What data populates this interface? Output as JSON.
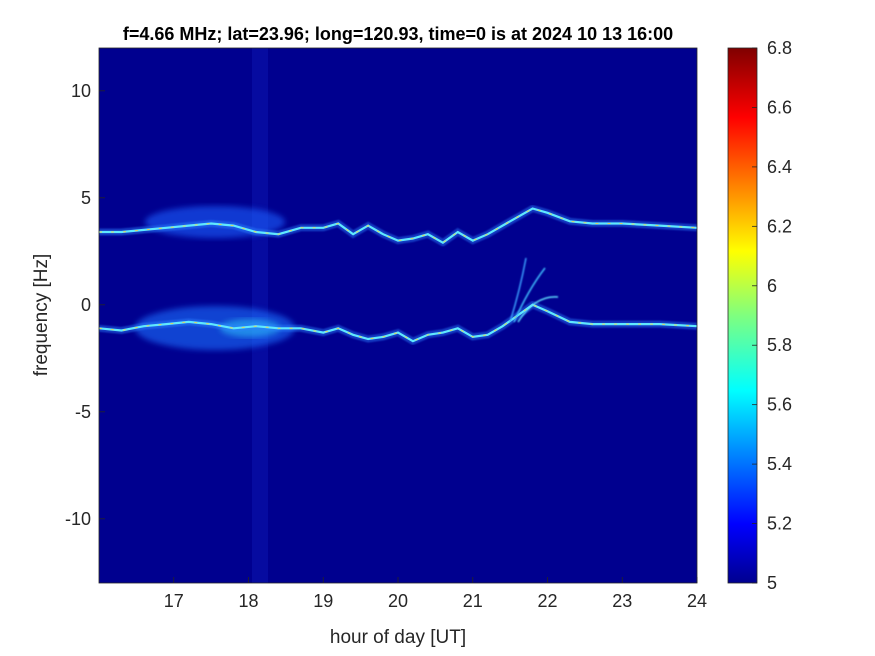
{
  "chart_data": {
    "type": "heatmap",
    "title": "f=4.66 MHz;  lat=23.96; long=120.93, time=0 is at 2024 10 13 16:00",
    "xlabel": "hour of day [UT]",
    "ylabel": "frequency [Hz]",
    "xlim": [
      16,
      24
    ],
    "ylim": [
      -13,
      12
    ],
    "xticks": [
      17,
      18,
      19,
      20,
      21,
      22,
      23,
      24
    ],
    "yticks": [
      -10,
      -5,
      0,
      5,
      10
    ],
    "colorbar": {
      "min": 5,
      "max": 6.8,
      "ticks": [
        5,
        5.2,
        5.4,
        5.6,
        5.8,
        6,
        6.2,
        6.4,
        6.6,
        6.8
      ],
      "colormap": "jet"
    },
    "background_color": "#00008f",
    "traces": [
      {
        "name": "",
        "points": [
          [
            16.0,
            3.4
          ],
          [
            16.3,
            3.4
          ],
          [
            16.6,
            3.5
          ],
          [
            16.9,
            3.6
          ],
          [
            17.2,
            3.7
          ],
          [
            17.5,
            3.8
          ],
          [
            17.8,
            3.7
          ],
          [
            18.1,
            3.4
          ],
          [
            18.4,
            3.3
          ],
          [
            18.7,
            3.6
          ],
          [
            19.0,
            3.6
          ],
          [
            19.2,
            3.8
          ],
          [
            19.4,
            3.3
          ],
          [
            19.6,
            3.7
          ],
          [
            19.8,
            3.3
          ],
          [
            20.0,
            3.0
          ],
          [
            20.2,
            3.1
          ],
          [
            20.4,
            3.3
          ],
          [
            20.6,
            2.9
          ],
          [
            20.8,
            3.4
          ],
          [
            21.0,
            3.0
          ],
          [
            21.2,
            3.3
          ],
          [
            21.5,
            3.9
          ],
          [
            21.8,
            4.5
          ],
          [
            22.0,
            4.3
          ],
          [
            22.3,
            3.9
          ],
          [
            22.6,
            3.8
          ],
          [
            23.0,
            3.8
          ],
          [
            23.5,
            3.7
          ],
          [
            24.0,
            3.6
          ]
        ]
      },
      {
        "name": "",
        "points": [
          [
            16.0,
            -1.1
          ],
          [
            16.3,
            -1.2
          ],
          [
            16.6,
            -1.0
          ],
          [
            16.9,
            -0.9
          ],
          [
            17.2,
            -0.8
          ],
          [
            17.5,
            -0.9
          ],
          [
            17.8,
            -1.1
          ],
          [
            18.1,
            -1.0
          ],
          [
            18.4,
            -1.1
          ],
          [
            18.7,
            -1.1
          ],
          [
            19.0,
            -1.3
          ],
          [
            19.2,
            -1.1
          ],
          [
            19.4,
            -1.4
          ],
          [
            19.6,
            -1.6
          ],
          [
            19.8,
            -1.5
          ],
          [
            20.0,
            -1.3
          ],
          [
            20.2,
            -1.7
          ],
          [
            20.4,
            -1.4
          ],
          [
            20.6,
            -1.3
          ],
          [
            20.8,
            -1.1
          ],
          [
            21.0,
            -1.5
          ],
          [
            21.2,
            -1.4
          ],
          [
            21.4,
            -1.0
          ],
          [
            21.6,
            -0.5
          ],
          [
            21.8,
            0.0
          ],
          [
            22.0,
            -0.3
          ],
          [
            22.3,
            -0.8
          ],
          [
            22.6,
            -0.9
          ],
          [
            23.0,
            -0.9
          ],
          [
            23.5,
            -0.9
          ],
          [
            24.0,
            -1.0
          ]
        ]
      }
    ]
  }
}
